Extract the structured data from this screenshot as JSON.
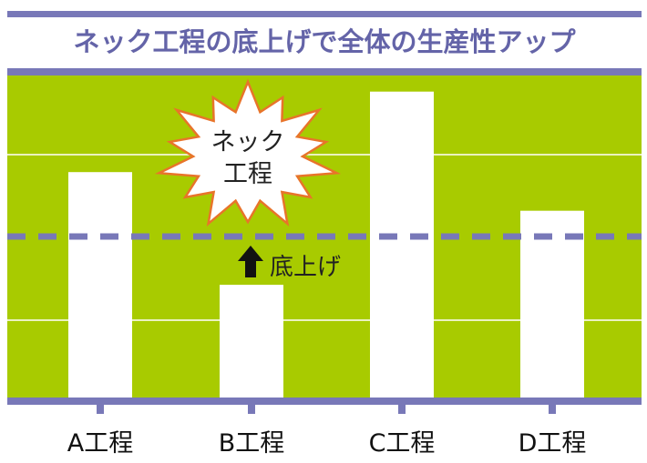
{
  "chart_data": {
    "type": "bar",
    "title": "ネック工程の底上げで全体の生産性アップ",
    "categories": [
      "A工程",
      "B工程",
      "C工程",
      "D工程"
    ],
    "values": [
      0.7,
      0.35,
      0.95,
      0.58
    ],
    "value_unit": "fraction of plot height (no axis values printed)",
    "ylim": [
      0,
      1
    ],
    "grid": true,
    "reference_line": {
      "value": 0.5,
      "style": "dashed"
    },
    "annotations": {
      "burst_line1": "ネック",
      "burst_line2": "工程",
      "arrow_label": "底上げ"
    },
    "colors": {
      "plot_bg": "#a8cb00",
      "bars": "#ffffff",
      "accent": "#7878b8",
      "burst_outline": "#e8742a",
      "title": "#6464a8"
    }
  }
}
